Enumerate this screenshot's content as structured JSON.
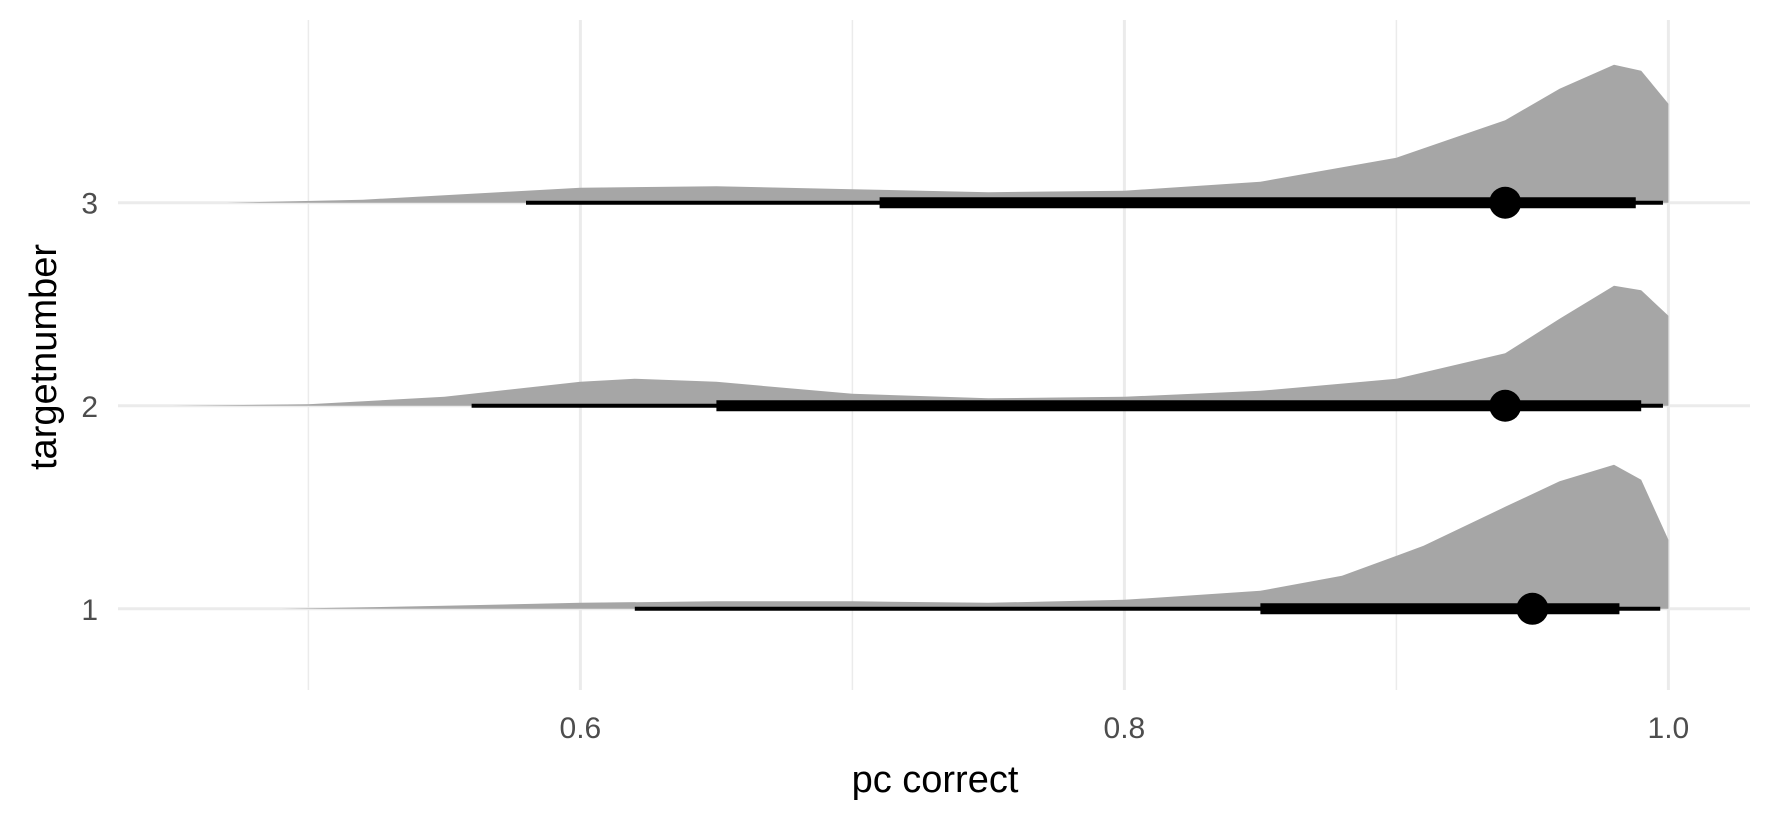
{
  "chart_data": {
    "type": "halfeye",
    "title": "",
    "xlabel": "pc correct",
    "ylabel": "targetnumber",
    "xlim": [
      0.43,
      1.03
    ],
    "ylim": [
      0.6,
      3.9
    ],
    "grid": true,
    "legend": "none",
    "x_ticks": [
      0.6,
      0.8,
      1.0
    ],
    "x_tick_labels": [
      "0.6",
      "0.8",
      "1.0"
    ],
    "x_minor_ticks": [
      0.5,
      0.7,
      0.9
    ],
    "categories": [
      "1",
      "2",
      "3"
    ],
    "colors": {
      "density_fill": "#a6a6a6",
      "interval": "#000000",
      "grid": "#ebebeb",
      "tick_text": "#4d4d4d"
    },
    "series": [
      {
        "category": "1",
        "point": 0.95,
        "interval_66": [
          0.85,
          0.982
        ],
        "interval_95": [
          0.62,
          0.997
        ],
        "density": [
          [
            0.49,
            0.0
          ],
          [
            0.55,
            0.02
          ],
          [
            0.6,
            0.04
          ],
          [
            0.65,
            0.05
          ],
          [
            0.7,
            0.05
          ],
          [
            0.75,
            0.04
          ],
          [
            0.8,
            0.06
          ],
          [
            0.85,
            0.12
          ],
          [
            0.88,
            0.22
          ],
          [
            0.91,
            0.42
          ],
          [
            0.94,
            0.68
          ],
          [
            0.96,
            0.85
          ],
          [
            0.98,
            0.96
          ],
          [
            0.99,
            0.86
          ],
          [
            1.0,
            0.46
          ]
        ]
      },
      {
        "category": "2",
        "point": 0.94,
        "interval_66": [
          0.65,
          0.99
        ],
        "interval_95": [
          0.56,
          0.998
        ],
        "density": [
          [
            0.45,
            0.0
          ],
          [
            0.5,
            0.01
          ],
          [
            0.55,
            0.06
          ],
          [
            0.6,
            0.16
          ],
          [
            0.62,
            0.18
          ],
          [
            0.65,
            0.16
          ],
          [
            0.7,
            0.08
          ],
          [
            0.75,
            0.05
          ],
          [
            0.8,
            0.06
          ],
          [
            0.85,
            0.1
          ],
          [
            0.9,
            0.18
          ],
          [
            0.94,
            0.35
          ],
          [
            0.96,
            0.58
          ],
          [
            0.98,
            0.8
          ],
          [
            0.99,
            0.77
          ],
          [
            1.0,
            0.6
          ]
        ]
      },
      {
        "category": "3",
        "point": 0.94,
        "interval_66": [
          0.71,
          0.988
        ],
        "interval_95": [
          0.58,
          0.998
        ],
        "density": [
          [
            0.47,
            0.0
          ],
          [
            0.52,
            0.02
          ],
          [
            0.57,
            0.07
          ],
          [
            0.6,
            0.1
          ],
          [
            0.65,
            0.11
          ],
          [
            0.7,
            0.09
          ],
          [
            0.75,
            0.07
          ],
          [
            0.8,
            0.08
          ],
          [
            0.85,
            0.14
          ],
          [
            0.9,
            0.3
          ],
          [
            0.94,
            0.55
          ],
          [
            0.96,
            0.76
          ],
          [
            0.98,
            0.92
          ],
          [
            0.99,
            0.88
          ],
          [
            1.0,
            0.66
          ]
        ]
      }
    ]
  }
}
